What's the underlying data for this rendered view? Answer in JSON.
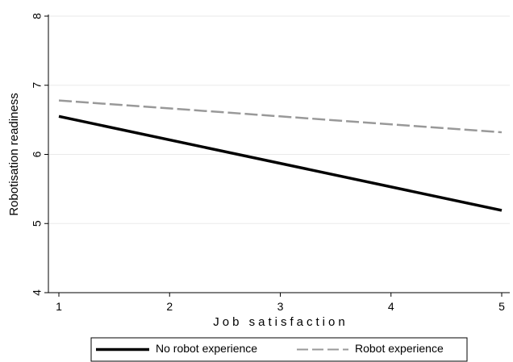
{
  "chart_data": {
    "type": "line",
    "xlabel": "Job satisfaction",
    "ylabel": "Robotisation readiness",
    "xlim": [
      1,
      5
    ],
    "ylim": [
      4,
      8
    ],
    "xticks": [
      "1",
      "2",
      "3",
      "4",
      "5"
    ],
    "yticks": [
      "4",
      "5",
      "6",
      "7",
      "8"
    ],
    "grid": "horizontal",
    "legend": "bottom",
    "series": [
      {
        "name": "No robot experience",
        "x": [
          1,
          5
        ],
        "y": [
          6.55,
          5.19
        ],
        "color": "#000000",
        "style": "solid"
      },
      {
        "name": "Robot experience",
        "x": [
          1,
          5
        ],
        "y": [
          6.78,
          6.32
        ],
        "color": "#999999",
        "style": "dashed"
      }
    ]
  }
}
